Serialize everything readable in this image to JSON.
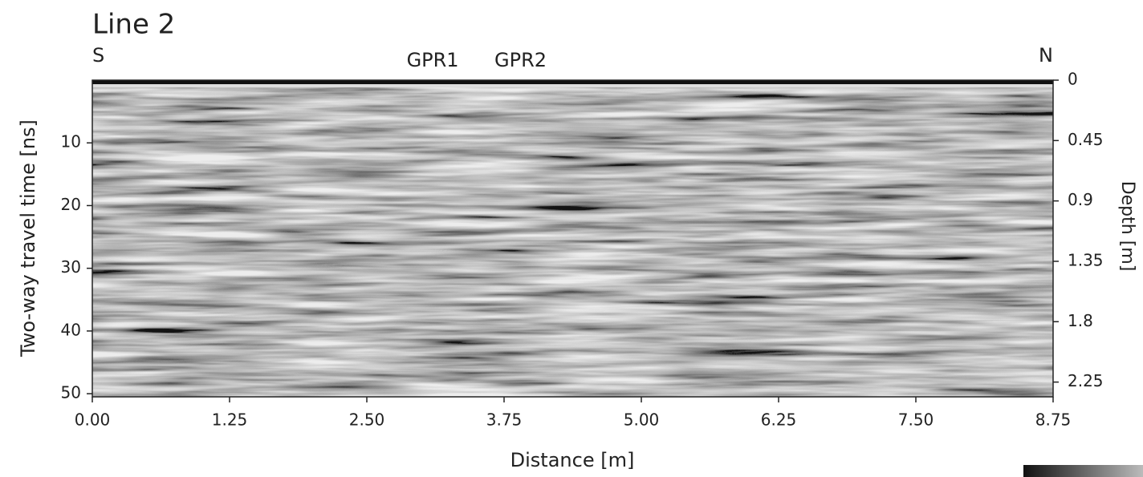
{
  "chart_data": {
    "type": "radargram",
    "title": "Line 2",
    "annotations": [
      "S",
      "GPR1",
      "GPR2",
      "N"
    ],
    "xlabel": "Distance [m]",
    "ylabel": "Two-way travel time [ns]",
    "y2label": "Depth [m]",
    "xlim": [
      0,
      8.75
    ],
    "xticks": [
      {
        "value": 0,
        "label": "0.00"
      },
      1.25,
      {
        "value": 2.5,
        "label": "2.50"
      },
      3.75,
      {
        "value": 5,
        "label": "5.00"
      },
      6.25,
      {
        "value": 7.5,
        "label": "7.50"
      },
      8.75
    ],
    "ylim": [
      0,
      50.5
    ],
    "yticks": [
      10,
      20,
      30,
      40,
      50
    ],
    "y2lim": [
      0,
      2.36
    ],
    "y2ticks": [
      0,
      0.45,
      0.9,
      1.35,
      1.8,
      2.25
    ],
    "annotation_x": [
      0,
      3.1,
      3.9,
      8.75
    ]
  }
}
